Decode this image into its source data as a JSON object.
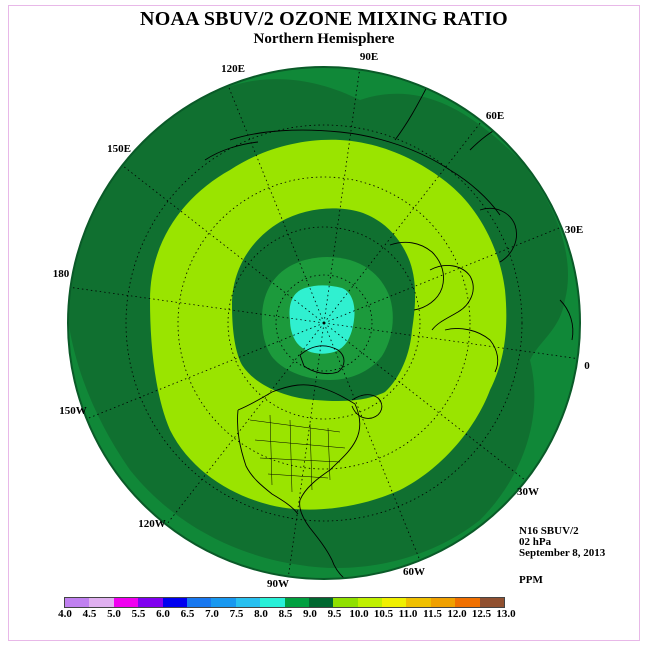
{
  "title": "NOAA SBUV/2 OZONE MIXING RATIO",
  "subtitle": "Northern Hemisphere",
  "longitude_labels": [
    {
      "id": "lon-90e",
      "text": "90E"
    },
    {
      "id": "lon-60e",
      "text": "60E"
    },
    {
      "id": "lon-120e",
      "text": "120E"
    },
    {
      "id": "lon-30e",
      "text": "30E"
    },
    {
      "id": "lon-150e",
      "text": "150E"
    },
    {
      "id": "lon-180",
      "text": "180"
    },
    {
      "id": "lon-0",
      "text": "0"
    },
    {
      "id": "lon-150w",
      "text": "150W"
    },
    {
      "id": "lon-30w",
      "text": "30W"
    },
    {
      "id": "lon-120w",
      "text": "120W"
    },
    {
      "id": "lon-60w",
      "text": "60W"
    },
    {
      "id": "lon-90w",
      "text": "90W"
    }
  ],
  "info": {
    "instrument": "N16 SBUV/2",
    "level": "02 hPa",
    "date": "September 8, 2013",
    "units": "PPM"
  },
  "colorbar": {
    "labels": [
      "4.0",
      "4.5",
      "5.0",
      "5.5",
      "6.0",
      "6.5",
      "7.0",
      "7.5",
      "8.0",
      "8.5",
      "9.0",
      "9.5",
      "10.0",
      "10.5",
      "11.0",
      "11.5",
      "12.0",
      "12.5",
      "13.0"
    ],
    "colors": [
      "#c080f0",
      "#e0b0f0",
      "#f000f0",
      "#8000f0",
      "#0000f0",
      "#1878f0",
      "#1898f0",
      "#28c0f0",
      "#28f0d8",
      "#00a040",
      "#006830",
      "#90e000",
      "#c0f000",
      "#f0f000",
      "#f0c000",
      "#f0a000",
      "#f07000",
      "#f00000",
      "#905030"
    ]
  },
  "map": {
    "ocean_contour_colors": {
      "outer_ring": "#108838",
      "ring_8_5": "#107030",
      "band_9_5": "#9ae400",
      "inner_ring": "#107030",
      "polar_8_0": "#1c9a3c",
      "core": "#30f0d0"
    }
  }
}
